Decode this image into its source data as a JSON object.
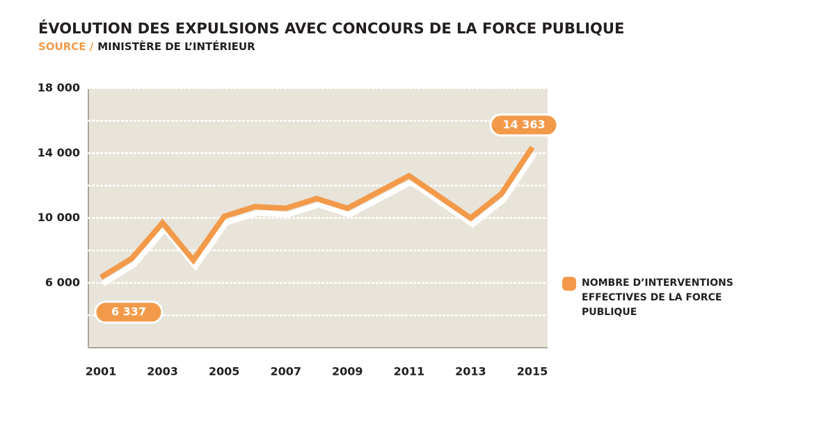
{
  "chart_data": {
    "type": "line",
    "title": "ÉVOLUTION DES EXPULSIONS AVEC CONCOURS DE LA FORCE PUBLIQUE",
    "source_label": "SOURCE /",
    "source": "MINISTÈRE DE L’INTÉRIEUR",
    "categories": [
      "2001",
      null,
      "2003",
      null,
      "2005",
      null,
      "2007",
      null,
      "2009",
      null,
      "2011",
      null,
      "2013",
      null,
      "2015"
    ],
    "series": [
      {
        "name": "NOMBRE D’INTERVENTIONS EFFECTIVES DE LA FORCE PUBLIQUE",
        "color": "#f39a4a",
        "values": [
          6337,
          7500,
          9700,
          7400,
          10100,
          10700,
          10600,
          11200,
          10600,
          11600,
          12600,
          11300,
          10000,
          11500,
          14363
        ],
        "value_labels": [
          "6 337",
          null,
          null,
          null,
          null,
          null,
          null,
          null,
          null,
          null,
          null,
          null,
          null,
          null,
          "14 363"
        ]
      }
    ],
    "ylim": [
      2000,
      18000
    ],
    "yticks": [
      {
        "value": 6000,
        "label": "6 000"
      },
      {
        "value": 10000,
        "label": "10 000"
      },
      {
        "value": 14000,
        "label": "14 000"
      },
      {
        "value": 18000,
        "label": "18 000"
      }
    ],
    "minor_yticks": [
      4000,
      8000,
      12000,
      16000
    ],
    "grid": true,
    "legend": "right"
  }
}
